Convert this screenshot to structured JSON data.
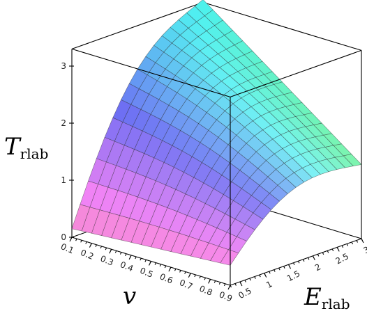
{
  "chart_data": {
    "type": "surface3d",
    "title": "",
    "axes": {
      "x": {
        "label_main": "v",
        "label_sub": "",
        "range": [
          0.1,
          0.9
        ],
        "ticks": [
          "0.1",
          "0.2",
          "0.3",
          "0.4",
          "0.5",
          "0.6",
          "0.7",
          "0.8",
          "0.9"
        ]
      },
      "y": {
        "label_main": "E",
        "label_sub": "rlab",
        "range": [
          0.3,
          3.0
        ],
        "ticks": [
          "0.5",
          "1",
          "1.5",
          "2",
          "2.5",
          "3"
        ]
      },
      "z": {
        "label_main": "T",
        "label_sub": "rlab",
        "range": [
          0,
          3.3
        ],
        "ticks": [
          "0",
          "1",
          "2",
          "3"
        ]
      }
    },
    "grid_points": {
      "v": 17,
      "E": 17
    },
    "surface_function": "T_rlab(v, E_rlab) — peak near v=0.1,E=3 (≈3.35); ≈0.15 at v=0.1,E=0.3; ≈1.3 at v=0.9,E=3; ≈0.35 at v=0.9,E=0.3",
    "corner_values": [
      {
        "v": 0.1,
        "E": 0.3,
        "T": 0.15
      },
      {
        "v": 0.9,
        "E": 0.3,
        "T": 0.35
      },
      {
        "v": 0.9,
        "E": 3.0,
        "T": 1.3
      },
      {
        "v": 0.1,
        "E": 3.0,
        "T": 3.35
      }
    ],
    "box": true,
    "colormap": "rainbow-pastel"
  }
}
